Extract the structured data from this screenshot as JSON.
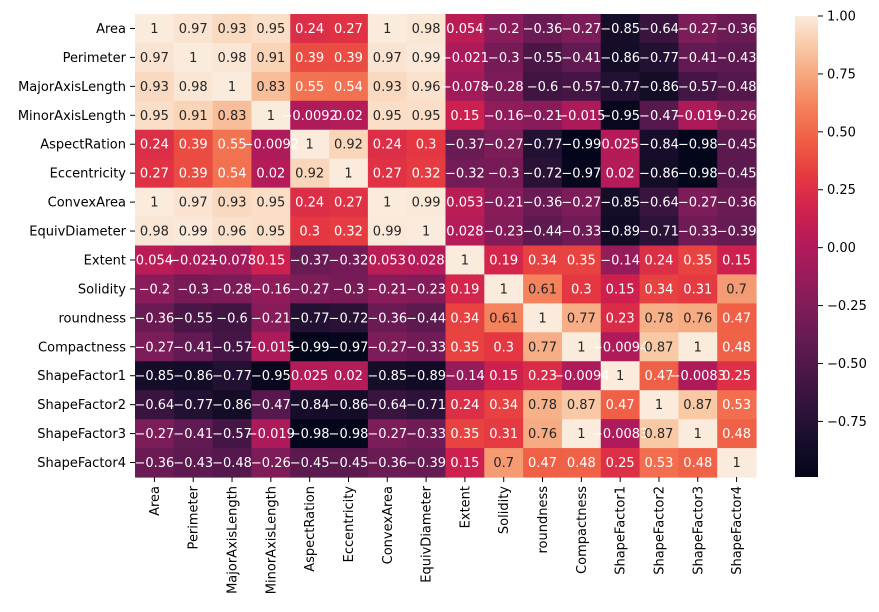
{
  "chart_data": {
    "type": "heatmap",
    "title": "",
    "xlabel": "",
    "ylabel": "",
    "rows": [
      "Area",
      "Perimeter",
      "MajorAxisLength",
      "MinorAxisLength",
      "AspectRation",
      "Eccentricity",
      "ConvexArea",
      "EquivDiameter",
      "Extent",
      "Solidity",
      "roundness",
      "Compactness",
      "ShapeFactor1",
      "ShapeFactor2",
      "ShapeFactor3",
      "ShapeFactor4"
    ],
    "columns": [
      "Area",
      "Perimeter",
      "MajorAxisLength",
      "MinorAxisLength",
      "AspectRation",
      "Eccentricity",
      "ConvexArea",
      "EquivDiameter",
      "Extent",
      "Solidity",
      "roundness",
      "Compactness",
      "ShapeFactor1",
      "ShapeFactor2",
      "ShapeFactor3",
      "ShapeFactor4"
    ],
    "values": [
      [
        1,
        0.97,
        0.93,
        0.95,
        0.24,
        0.27,
        1,
        0.98,
        0.054,
        -0.2,
        -0.36,
        -0.27,
        -0.85,
        -0.64,
        -0.27,
        -0.36
      ],
      [
        0.97,
        1,
        0.98,
        0.91,
        0.39,
        0.39,
        0.97,
        0.99,
        -0.021,
        -0.3,
        -0.55,
        -0.41,
        -0.86,
        -0.77,
        -0.41,
        -0.43
      ],
      [
        0.93,
        0.98,
        1,
        0.83,
        0.55,
        0.54,
        0.93,
        0.96,
        -0.078,
        -0.28,
        -0.6,
        -0.57,
        -0.77,
        -0.86,
        -0.57,
        -0.48
      ],
      [
        0.95,
        0.91,
        0.83,
        1,
        -0.0092,
        0.02,
        0.95,
        0.95,
        0.15,
        -0.16,
        -0.21,
        -0.015,
        -0.95,
        -0.47,
        -0.019,
        -0.26
      ],
      [
        0.24,
        0.39,
        0.55,
        -0.0092,
        1,
        0.92,
        0.24,
        0.3,
        -0.37,
        -0.27,
        -0.77,
        -0.99,
        0.025,
        -0.84,
        -0.98,
        -0.45
      ],
      [
        0.27,
        0.39,
        0.54,
        0.02,
        0.92,
        1,
        0.27,
        0.32,
        -0.32,
        -0.3,
        -0.72,
        -0.97,
        0.02,
        -0.86,
        -0.98,
        -0.45
      ],
      [
        1,
        0.97,
        0.93,
        0.95,
        0.24,
        0.27,
        1,
        0.99,
        0.053,
        -0.21,
        -0.36,
        -0.27,
        -0.85,
        -0.64,
        -0.27,
        -0.36
      ],
      [
        0.98,
        0.99,
        0.96,
        0.95,
        0.3,
        0.32,
        0.99,
        1,
        0.028,
        -0.23,
        -0.44,
        -0.33,
        -0.89,
        -0.71,
        -0.33,
        -0.39
      ],
      [
        0.054,
        -0.021,
        -0.078,
        0.15,
        -0.37,
        -0.32,
        0.053,
        0.028,
        1,
        0.19,
        0.34,
        0.35,
        -0.14,
        0.24,
        0.35,
        0.15
      ],
      [
        -0.2,
        -0.3,
        -0.28,
        -0.16,
        -0.27,
        -0.3,
        -0.21,
        -0.23,
        0.19,
        1,
        0.61,
        0.3,
        0.15,
        0.34,
        0.31,
        0.7
      ],
      [
        -0.36,
        -0.55,
        -0.6,
        -0.21,
        -0.77,
        -0.72,
        -0.36,
        -0.44,
        0.34,
        0.61,
        1,
        0.77,
        0.23,
        0.78,
        0.76,
        0.47
      ],
      [
        -0.27,
        -0.41,
        -0.57,
        -0.015,
        -0.99,
        -0.97,
        -0.27,
        -0.33,
        0.35,
        0.3,
        0.77,
        1,
        -0.0094,
        0.87,
        1,
        0.48
      ],
      [
        -0.85,
        -0.86,
        -0.77,
        -0.95,
        0.025,
        0.02,
        -0.85,
        -0.89,
        -0.14,
        0.15,
        0.23,
        -0.0094,
        1,
        0.47,
        -0.0083,
        0.25
      ],
      [
        -0.64,
        -0.77,
        -0.86,
        -0.47,
        -0.84,
        -0.86,
        -0.64,
        -0.71,
        0.24,
        0.34,
        0.78,
        0.87,
        0.47,
        1,
        0.87,
        0.53
      ],
      [
        -0.27,
        -0.41,
        -0.57,
        -0.019,
        -0.98,
        -0.98,
        -0.27,
        -0.33,
        0.35,
        0.31,
        0.76,
        1,
        -0.0083,
        0.87,
        1,
        0.48
      ],
      [
        -0.36,
        -0.43,
        -0.48,
        -0.26,
        -0.45,
        -0.45,
        -0.36,
        -0.39,
        0.15,
        0.7,
        0.47,
        0.48,
        0.25,
        0.53,
        0.48,
        1
      ]
    ],
    "colorbar": {
      "range": [
        -0.99,
        1.0
      ],
      "ticks": [
        1.0,
        0.75,
        0.5,
        0.25,
        0.0,
        -0.25,
        -0.5,
        -0.75
      ],
      "tick_labels": [
        "1.00",
        "0.75",
        "0.50",
        "0.25",
        "0.00",
        "−0.25",
        "−0.50",
        "−0.75"
      ],
      "colormap": "rocket"
    },
    "grid": false,
    "annotations": "cell values"
  }
}
